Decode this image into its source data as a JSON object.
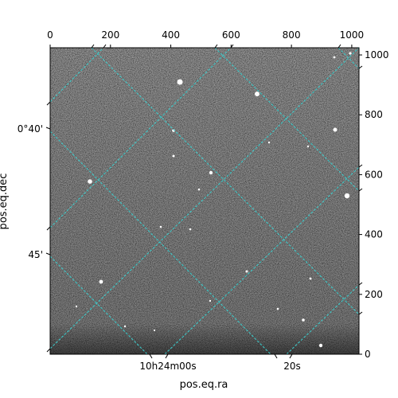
{
  "chart_data": {
    "type": "image",
    "xlabel": "pos.eq.ra",
    "ylabel": "pos.eq.dec",
    "pixel_axes": {
      "x_range": [
        0,
        1024
      ],
      "y_range": [
        0,
        1024
      ],
      "top_ticks": [
        0,
        200,
        400,
        600,
        800,
        1000
      ],
      "right_ticks": [
        0,
        200,
        400,
        600,
        800,
        1000
      ]
    },
    "world_axes": {
      "ra_ticks": [
        {
          "label": "10h24m00s",
          "value": 0
        },
        {
          "label": "20s",
          "value": 20
        }
      ],
      "dec_ticks": [
        {
          "label": "0°40'",
          "value": 40
        },
        {
          "label": "45'",
          "value": 45
        }
      ]
    },
    "grid": true,
    "grid_color": "#3cc8c8",
    "image_colormap": "gray"
  }
}
